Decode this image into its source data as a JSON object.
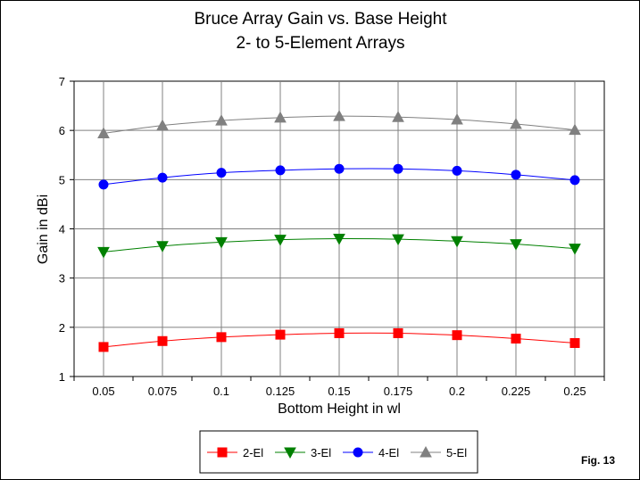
{
  "chart_data": {
    "type": "line",
    "title": [
      "Bruce Array Gain vs. Base Height",
      "2- to 5-Element Arrays"
    ],
    "xlabel": "Bottom Height in wl",
    "ylabel": "Gain in dBi",
    "categories": [
      "0.05",
      "0.075",
      "0.1",
      "0.125",
      "0.15",
      "0.175",
      "0.2",
      "0.225",
      "0.25"
    ],
    "ylim": [
      1,
      7
    ],
    "yticks": [
      "1",
      "2",
      "3",
      "4",
      "5",
      "6",
      "7"
    ],
    "grid": true,
    "legend_position": "bottom",
    "series": [
      {
        "name": "2-El",
        "color": "#ff0000",
        "marker": "square",
        "values": [
          1.6,
          1.72,
          1.8,
          1.85,
          1.88,
          1.88,
          1.84,
          1.77,
          1.68
        ]
      },
      {
        "name": "3-El",
        "color": "#008000",
        "marker": "triangle-down",
        "values": [
          3.53,
          3.65,
          3.73,
          3.78,
          3.8,
          3.79,
          3.75,
          3.69,
          3.6
        ]
      },
      {
        "name": "4-El",
        "color": "#0000ff",
        "marker": "circle",
        "values": [
          4.9,
          5.04,
          5.14,
          5.19,
          5.22,
          5.22,
          5.18,
          5.1,
          4.99
        ]
      },
      {
        "name": "5-El",
        "color": "#808080",
        "marker": "triangle-up",
        "values": [
          5.94,
          6.1,
          6.2,
          6.26,
          6.29,
          6.27,
          6.22,
          6.13,
          6.01
        ]
      }
    ]
  },
  "figure_label": "Fig. 13"
}
